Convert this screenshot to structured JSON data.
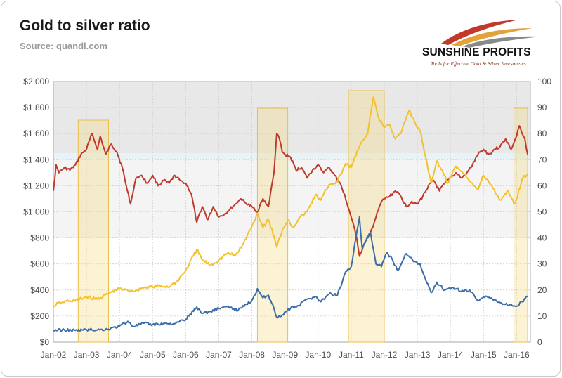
{
  "header": {
    "title": "Gold to silver ratio",
    "subtitle": "Source: quandl.com"
  },
  "logo": {
    "brand": "SUNSHINE PROFITS",
    "tagline": "Tools for Effective Gold & Silver Investments",
    "colors": [
      "#c0392b",
      "#e3a33a",
      "#8a8a8a"
    ]
  },
  "chart_data": {
    "type": "line",
    "title": "Gold to silver ratio",
    "xlabel": "",
    "ylabel_left": "",
    "ylabel_right": "",
    "x_ticks": [
      "Jan-02",
      "Jan-03",
      "Jan-04",
      "Jan-05",
      "Jan-06",
      "Jan-07",
      "Jan-08",
      "Jan-09",
      "Jan-10",
      "Jan-11",
      "Jan-12",
      "Jan-13",
      "Jan-14",
      "Jan-15",
      "Jan-16"
    ],
    "x_range": [
      "2002-01",
      "2016-06"
    ],
    "y_left": {
      "ticks": [
        "$0",
        "$200",
        "$400",
        "$600",
        "$800",
        "$1 000",
        "$1 200",
        "$1 400",
        "$1 600",
        "$1 800",
        "$2 000"
      ],
      "range": [
        0,
        2000
      ]
    },
    "y_right": {
      "ticks": [
        "0",
        "10",
        "20",
        "30",
        "40",
        "50",
        "60",
        "70",
        "80",
        "90",
        "100"
      ],
      "range": [
        0,
        100
      ]
    },
    "grid": true,
    "background_bands": [
      {
        "from": 1450,
        "to": 2000,
        "color": "#e8e8e8",
        "axis": "left"
      },
      {
        "from": 1400,
        "to": 1450,
        "color": "#e9f2f7",
        "axis": "left"
      },
      {
        "from": 800,
        "to": 1400,
        "color": "#f4f4f4",
        "axis": "left"
      }
    ],
    "highlight_periods": [
      {
        "start": "2002-10",
        "end": "2003-09"
      },
      {
        "start": "2008-03",
        "end": "2009-02"
      },
      {
        "start": "2010-12",
        "end": "2012-01"
      },
      {
        "start": "2015-12",
        "end": "2016-05"
      }
    ],
    "series": [
      {
        "name": "",
        "axis": "right",
        "color": "#c0392b",
        "points": [
          [
            "2002-01",
            58
          ],
          [
            "2002-02",
            68
          ],
          [
            "2002-03",
            65
          ],
          [
            "2002-05",
            67
          ],
          [
            "2002-07",
            66
          ],
          [
            "2002-09",
            68
          ],
          [
            "2002-11",
            72
          ],
          [
            "2003-01",
            74
          ],
          [
            "2003-03",
            80
          ],
          [
            "2003-05",
            74
          ],
          [
            "2003-06",
            79
          ],
          [
            "2003-08",
            72
          ],
          [
            "2003-10",
            76
          ],
          [
            "2003-12",
            73
          ],
          [
            "2004-02",
            67
          ],
          [
            "2004-03",
            62
          ],
          [
            "2004-05",
            53
          ],
          [
            "2004-07",
            63
          ],
          [
            "2004-09",
            64
          ],
          [
            "2004-11",
            61
          ],
          [
            "2005-01",
            64
          ],
          [
            "2005-03",
            60
          ],
          [
            "2005-05",
            62
          ],
          [
            "2005-07",
            61
          ],
          [
            "2005-09",
            64
          ],
          [
            "2005-11",
            62
          ],
          [
            "2006-01",
            61
          ],
          [
            "2006-03",
            57
          ],
          [
            "2006-05",
            46
          ],
          [
            "2006-07",
            52
          ],
          [
            "2006-09",
            47
          ],
          [
            "2006-11",
            52
          ],
          [
            "2007-01",
            48
          ],
          [
            "2007-03",
            49
          ],
          [
            "2007-05",
            51
          ],
          [
            "2007-07",
            53
          ],
          [
            "2007-09",
            55
          ],
          [
            "2007-11",
            53
          ],
          [
            "2008-01",
            52
          ],
          [
            "2008-03",
            50
          ],
          [
            "2008-05",
            55
          ],
          [
            "2008-07",
            52
          ],
          [
            "2008-09",
            65
          ],
          [
            "2008-10",
            80
          ],
          [
            "2008-11",
            78
          ],
          [
            "2008-12",
            73
          ],
          [
            "2009-01",
            72
          ],
          [
            "2009-03",
            71
          ],
          [
            "2009-05",
            66
          ],
          [
            "2009-07",
            67
          ],
          [
            "2009-09",
            63
          ],
          [
            "2009-11",
            66
          ],
          [
            "2010-01",
            68
          ],
          [
            "2010-03",
            65
          ],
          [
            "2010-05",
            67
          ],
          [
            "2010-07",
            64
          ],
          [
            "2010-09",
            61
          ],
          [
            "2010-11",
            55
          ],
          [
            "2011-01",
            48
          ],
          [
            "2011-03",
            40
          ],
          [
            "2011-04",
            33
          ],
          [
            "2011-06",
            38
          ],
          [
            "2011-08",
            42
          ],
          [
            "2011-10",
            48
          ],
          [
            "2011-12",
            54
          ],
          [
            "2012-01",
            55
          ],
          [
            "2012-03",
            56
          ],
          [
            "2012-05",
            58
          ],
          [
            "2012-07",
            56
          ],
          [
            "2012-09",
            52
          ],
          [
            "2012-11",
            54
          ],
          [
            "2013-01",
            53
          ],
          [
            "2013-03",
            56
          ],
          [
            "2013-05",
            60
          ],
          [
            "2013-07",
            62
          ],
          [
            "2013-09",
            58
          ],
          [
            "2013-11",
            61
          ],
          [
            "2014-01",
            63
          ],
          [
            "2014-03",
            65
          ],
          [
            "2014-05",
            63
          ],
          [
            "2014-07",
            65
          ],
          [
            "2014-09",
            68
          ],
          [
            "2014-11",
            72
          ],
          [
            "2015-01",
            74
          ],
          [
            "2015-03",
            72
          ],
          [
            "2015-05",
            74
          ],
          [
            "2015-07",
            75
          ],
          [
            "2015-09",
            78
          ],
          [
            "2015-11",
            74
          ],
          [
            "2016-01",
            79
          ],
          [
            "2016-02",
            83
          ],
          [
            "2016-03",
            80
          ],
          [
            "2016-04",
            78
          ],
          [
            "2016-05",
            72
          ]
        ]
      },
      {
        "name": "",
        "axis": "left",
        "color": "#f2c12e",
        "points": [
          [
            "2002-01",
            280
          ],
          [
            "2002-04",
            305
          ],
          [
            "2002-07",
            318
          ],
          [
            "2002-10",
            322
          ],
          [
            "2003-01",
            350
          ],
          [
            "2003-04",
            330
          ],
          [
            "2003-07",
            350
          ],
          [
            "2003-10",
            385
          ],
          [
            "2004-01",
            410
          ],
          [
            "2004-04",
            395
          ],
          [
            "2004-07",
            398
          ],
          [
            "2004-10",
            422
          ],
          [
            "2005-01",
            425
          ],
          [
            "2005-04",
            430
          ],
          [
            "2005-07",
            425
          ],
          [
            "2005-10",
            470
          ],
          [
            "2006-01",
            550
          ],
          [
            "2006-05",
            710
          ],
          [
            "2006-07",
            630
          ],
          [
            "2006-10",
            590
          ],
          [
            "2007-01",
            630
          ],
          [
            "2007-04",
            680
          ],
          [
            "2007-07",
            665
          ],
          [
            "2007-10",
            760
          ],
          [
            "2008-01",
            890
          ],
          [
            "2008-03",
            990
          ],
          [
            "2008-05",
            880
          ],
          [
            "2008-07",
            940
          ],
          [
            "2008-09",
            810
          ],
          [
            "2008-10",
            730
          ],
          [
            "2008-12",
            860
          ],
          [
            "2009-02",
            940
          ],
          [
            "2009-04",
            880
          ],
          [
            "2009-06",
            950
          ],
          [
            "2009-09",
            1000
          ],
          [
            "2009-12",
            1130
          ],
          [
            "2010-02",
            1090
          ],
          [
            "2010-05",
            1210
          ],
          [
            "2010-08",
            1230
          ],
          [
            "2010-11",
            1370
          ],
          [
            "2011-01",
            1340
          ],
          [
            "2011-04",
            1500
          ],
          [
            "2011-07",
            1600
          ],
          [
            "2011-09",
            1880
          ],
          [
            "2011-11",
            1720
          ],
          [
            "2012-01",
            1650
          ],
          [
            "2012-03",
            1670
          ],
          [
            "2012-05",
            1560
          ],
          [
            "2012-07",
            1600
          ],
          [
            "2012-10",
            1780
          ],
          [
            "2012-12",
            1690
          ],
          [
            "2013-02",
            1620
          ],
          [
            "2013-04",
            1420
          ],
          [
            "2013-06",
            1220
          ],
          [
            "2013-08",
            1390
          ],
          [
            "2013-10",
            1320
          ],
          [
            "2013-12",
            1220
          ],
          [
            "2014-03",
            1350
          ],
          [
            "2014-06",
            1290
          ],
          [
            "2014-09",
            1220
          ],
          [
            "2014-11",
            1170
          ],
          [
            "2015-01",
            1280
          ],
          [
            "2015-04",
            1200
          ],
          [
            "2015-07",
            1090
          ],
          [
            "2015-10",
            1160
          ],
          [
            "2015-12",
            1060
          ],
          [
            "2016-01",
            1100
          ],
          [
            "2016-03",
            1250
          ],
          [
            "2016-05",
            1290
          ]
        ]
      },
      {
        "name": "",
        "axis": "right",
        "color": "#3b6ea8",
        "points": [
          [
            "2002-01",
            4.6
          ],
          [
            "2002-05",
            4.7
          ],
          [
            "2002-09",
            4.5
          ],
          [
            "2003-01",
            4.8
          ],
          [
            "2003-05",
            4.7
          ],
          [
            "2003-09",
            5.0
          ],
          [
            "2004-01",
            6.2
          ],
          [
            "2004-04",
            8.0
          ],
          [
            "2004-06",
            6.0
          ],
          [
            "2004-10",
            7.3
          ],
          [
            "2005-01",
            6.7
          ],
          [
            "2005-05",
            7.2
          ],
          [
            "2005-09",
            7.1
          ],
          [
            "2006-01",
            8.8
          ],
          [
            "2006-05",
            13.5
          ],
          [
            "2006-07",
            11.0
          ],
          [
            "2006-10",
            11.8
          ],
          [
            "2007-01",
            13.0
          ],
          [
            "2007-04",
            13.6
          ],
          [
            "2007-08",
            12.2
          ],
          [
            "2007-11",
            14.5
          ],
          [
            "2008-01",
            16.0
          ],
          [
            "2008-03",
            20.5
          ],
          [
            "2008-05",
            17.0
          ],
          [
            "2008-07",
            18.0
          ],
          [
            "2008-09",
            13.0
          ],
          [
            "2008-10",
            9.5
          ],
          [
            "2008-12",
            10.5
          ],
          [
            "2009-03",
            13.0
          ],
          [
            "2009-06",
            14.0
          ],
          [
            "2009-09",
            16.5
          ],
          [
            "2009-12",
            17.5
          ],
          [
            "2010-02",
            15.5
          ],
          [
            "2010-05",
            18.5
          ],
          [
            "2010-08",
            18.0
          ],
          [
            "2010-11",
            27.0
          ],
          [
            "2011-01",
            29.0
          ],
          [
            "2011-04",
            48.0
          ],
          [
            "2011-05",
            36.0
          ],
          [
            "2011-08",
            42.0
          ],
          [
            "2011-10",
            30.0
          ],
          [
            "2011-12",
            29.0
          ],
          [
            "2012-02",
            34.5
          ],
          [
            "2012-04",
            31.5
          ],
          [
            "2012-06",
            27.5
          ],
          [
            "2012-09",
            34.0
          ],
          [
            "2012-12",
            31.0
          ],
          [
            "2013-02",
            30.0
          ],
          [
            "2013-04",
            24.0
          ],
          [
            "2013-06",
            19.0
          ],
          [
            "2013-08",
            23.0
          ],
          [
            "2013-11",
            20.0
          ],
          [
            "2014-02",
            21.0
          ],
          [
            "2014-05",
            19.5
          ],
          [
            "2014-08",
            20.0
          ],
          [
            "2014-11",
            16.0
          ],
          [
            "2015-01",
            17.5
          ],
          [
            "2015-05",
            16.5
          ],
          [
            "2015-08",
            14.5
          ],
          [
            "2015-11",
            14.5
          ],
          [
            "2016-01",
            13.8
          ],
          [
            "2016-03",
            15.5
          ],
          [
            "2016-05",
            17.5
          ]
        ]
      }
    ]
  }
}
